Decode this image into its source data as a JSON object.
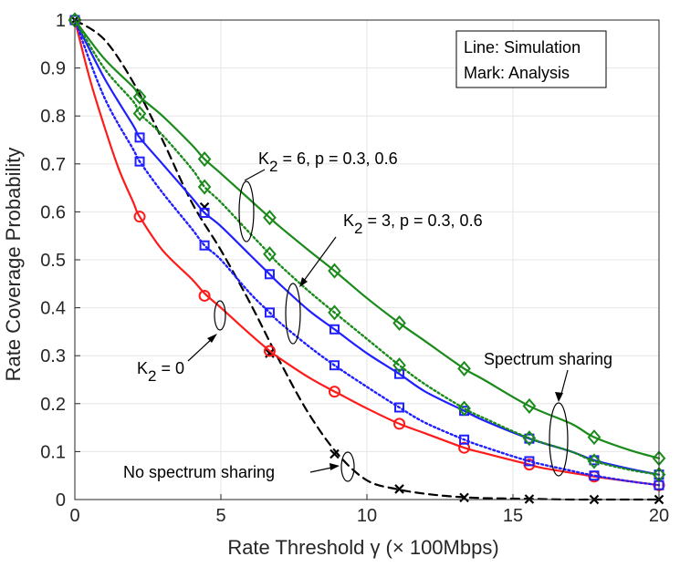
{
  "chart_data": {
    "type": "line",
    "xlabel": "Rate Threshold γ (× 100Mbps)",
    "ylabel": "Rate Coverage Probability",
    "xlim": [
      0,
      20
    ],
    "ylim": [
      0,
      1
    ],
    "xticks": [
      0,
      5,
      10,
      15,
      20
    ],
    "yticks": [
      0,
      0.1,
      0.2,
      0.3,
      0.4,
      0.5,
      0.6,
      0.7,
      0.8,
      0.9,
      1
    ],
    "grid": true,
    "legend_box": {
      "line1": "Line: Simulation",
      "line2": "Mark: Analysis"
    },
    "series": [
      {
        "name": "No spectrum sharing",
        "color": "#000000",
        "style": "dashed",
        "marker": "x",
        "line": {
          "x": [
            0,
            1,
            2,
            3,
            4,
            5,
            6,
            7,
            8,
            9,
            10,
            11,
            12,
            13,
            14,
            15,
            16,
            17,
            18,
            19,
            20
          ],
          "y": [
            1.0,
            0.96,
            0.87,
            0.75,
            0.62,
            0.52,
            0.41,
            0.29,
            0.18,
            0.095,
            0.04,
            0.022,
            0.012,
            0.006,
            0.003,
            0.002,
            0.001,
            0.0,
            0.0,
            0.0,
            0.0
          ]
        },
        "marks": {
          "x": [
            0,
            4.44,
            6.67,
            8.89,
            11.11,
            13.33,
            15.56,
            17.78,
            20
          ],
          "y": [
            1.0,
            0.61,
            0.305,
            0.095,
            0.022,
            0.004,
            0.001,
            0.0,
            0.0
          ]
        }
      },
      {
        "name": "K2 = 0",
        "color": "#ff1a1a",
        "style": "solid",
        "marker": "o",
        "line": {
          "x": [
            0,
            0.5,
            1,
            1.5,
            2,
            2.22,
            3,
            4,
            4.44,
            5,
            6,
            6.67,
            7,
            8,
            8.89,
            9,
            10,
            11.11,
            12,
            13.33,
            14,
            15.56,
            16,
            17.78,
            18,
            19,
            20
          ],
          "y": [
            1.0,
            0.88,
            0.78,
            0.69,
            0.62,
            0.59,
            0.52,
            0.46,
            0.43,
            0.4,
            0.345,
            0.31,
            0.295,
            0.255,
            0.225,
            0.222,
            0.19,
            0.158,
            0.138,
            0.108,
            0.097,
            0.073,
            0.066,
            0.048,
            0.046,
            0.038,
            0.03
          ],
          "note": "smooth decay"
        },
        "marks": {
          "x": [
            0,
            2.22,
            4.44,
            6.67,
            8.89,
            11.11,
            13.33,
            15.56,
            17.78,
            20
          ],
          "y": [
            1.0,
            0.59,
            0.425,
            0.31,
            0.225,
            0.158,
            0.108,
            0.073,
            0.048,
            0.03
          ]
        }
      },
      {
        "name": "K2 = 3, p = 0.3",
        "color": "#1f1fff",
        "style": "dotted",
        "marker": "square",
        "line": {
          "x": [
            0,
            1,
            2,
            2.22,
            3,
            4,
            4.44,
            5,
            6,
            6.67,
            7,
            8,
            8.89,
            10,
            11.11,
            12,
            13.33,
            14,
            15.56,
            17,
            17.78,
            19,
            20
          ],
          "y": [
            1.0,
            0.84,
            0.73,
            0.705,
            0.64,
            0.565,
            0.53,
            0.5,
            0.43,
            0.39,
            0.37,
            0.32,
            0.28,
            0.235,
            0.192,
            0.16,
            0.125,
            0.11,
            0.08,
            0.06,
            0.05,
            0.038,
            0.03
          ]
        },
        "marks": {
          "x": [
            0,
            2.22,
            4.44,
            6.67,
            8.89,
            11.11,
            13.33,
            15.56,
            17.78,
            20
          ],
          "y": [
            1.0,
            0.705,
            0.53,
            0.39,
            0.28,
            0.192,
            0.125,
            0.08,
            0.05,
            0.03
          ]
        }
      },
      {
        "name": "K2 = 3, p = 0.6",
        "color": "#1f1fff",
        "style": "solid",
        "marker": "square",
        "line": {
          "x": [
            0,
            1,
            2,
            2.22,
            3,
            4,
            4.44,
            5,
            6,
            6.67,
            7,
            8,
            8.89,
            10,
            11.11,
            12,
            13.33,
            14,
            15.56,
            17,
            17.78,
            19,
            20
          ],
          "y": [
            1.0,
            0.88,
            0.78,
            0.755,
            0.7,
            0.63,
            0.598,
            0.57,
            0.51,
            0.47,
            0.45,
            0.395,
            0.355,
            0.305,
            0.262,
            0.225,
            0.185,
            0.165,
            0.127,
            0.1,
            0.082,
            0.064,
            0.052
          ]
        },
        "marks": {
          "x": [
            0,
            2.22,
            4.44,
            6.67,
            8.89,
            11.11,
            13.33,
            15.56,
            17.78,
            20
          ],
          "y": [
            1.0,
            0.755,
            0.598,
            0.47,
            0.355,
            0.262,
            0.185,
            0.127,
            0.082,
            0.052
          ]
        }
      },
      {
        "name": "K2 = 6, p = 0.3",
        "color": "#1a8a1a",
        "style": "dotted",
        "marker": "diamond",
        "line": {
          "x": [
            0,
            1,
            2,
            2.22,
            3,
            4,
            4.44,
            5,
            6,
            6.67,
            7,
            8,
            8.89,
            10,
            11.11,
            12,
            13.33,
            14,
            15.56,
            17,
            17.78,
            19,
            20
          ],
          "y": [
            1.0,
            0.9,
            0.83,
            0.805,
            0.76,
            0.69,
            0.652,
            0.62,
            0.555,
            0.512,
            0.49,
            0.435,
            0.39,
            0.335,
            0.28,
            0.24,
            0.19,
            0.17,
            0.128,
            0.1,
            0.08,
            0.062,
            0.052
          ]
        },
        "marks": {
          "x": [
            0,
            2.22,
            4.44,
            6.67,
            8.89,
            11.11,
            13.33,
            15.56,
            17.78,
            20
          ],
          "y": [
            1.0,
            0.805,
            0.652,
            0.512,
            0.39,
            0.28,
            0.19,
            0.128,
            0.08,
            0.052
          ]
        }
      },
      {
        "name": "K2 = 6, p = 0.6",
        "color": "#1a8a1a",
        "style": "solid",
        "marker": "diamond",
        "line": {
          "x": [
            0,
            1,
            2,
            2.22,
            3,
            4,
            4.44,
            5,
            6,
            6.67,
            7,
            8,
            8.89,
            10,
            11.11,
            12,
            13.33,
            14,
            15.56,
            17,
            17.78,
            19,
            20
          ],
          "y": [
            1.0,
            0.92,
            0.86,
            0.84,
            0.8,
            0.74,
            0.71,
            0.68,
            0.625,
            0.588,
            0.57,
            0.52,
            0.477,
            0.42,
            0.368,
            0.33,
            0.273,
            0.25,
            0.195,
            0.158,
            0.13,
            0.103,
            0.086
          ]
        },
        "marks": {
          "x": [
            0,
            2.22,
            4.44,
            6.67,
            8.89,
            11.11,
            13.33,
            15.56,
            17.78,
            20
          ],
          "y": [
            1.0,
            0.84,
            0.71,
            0.588,
            0.477,
            0.368,
            0.273,
            0.195,
            0.13,
            0.086
          ]
        }
      }
    ],
    "annotations": {
      "k6_label": "K",
      "k6_sub": "2",
      "k6_rest": " = 6, p = 0.3, 0.6",
      "k3_label": "K",
      "k3_sub": "2",
      "k3_rest": " = 3, p = 0.3, 0.6",
      "k0_label": "K",
      "k0_sub": "2",
      "k0_rest": " = 0",
      "spectrum_sharing": "Spectrum sharing",
      "no_spectrum_sharing": "No spectrum sharing"
    }
  }
}
